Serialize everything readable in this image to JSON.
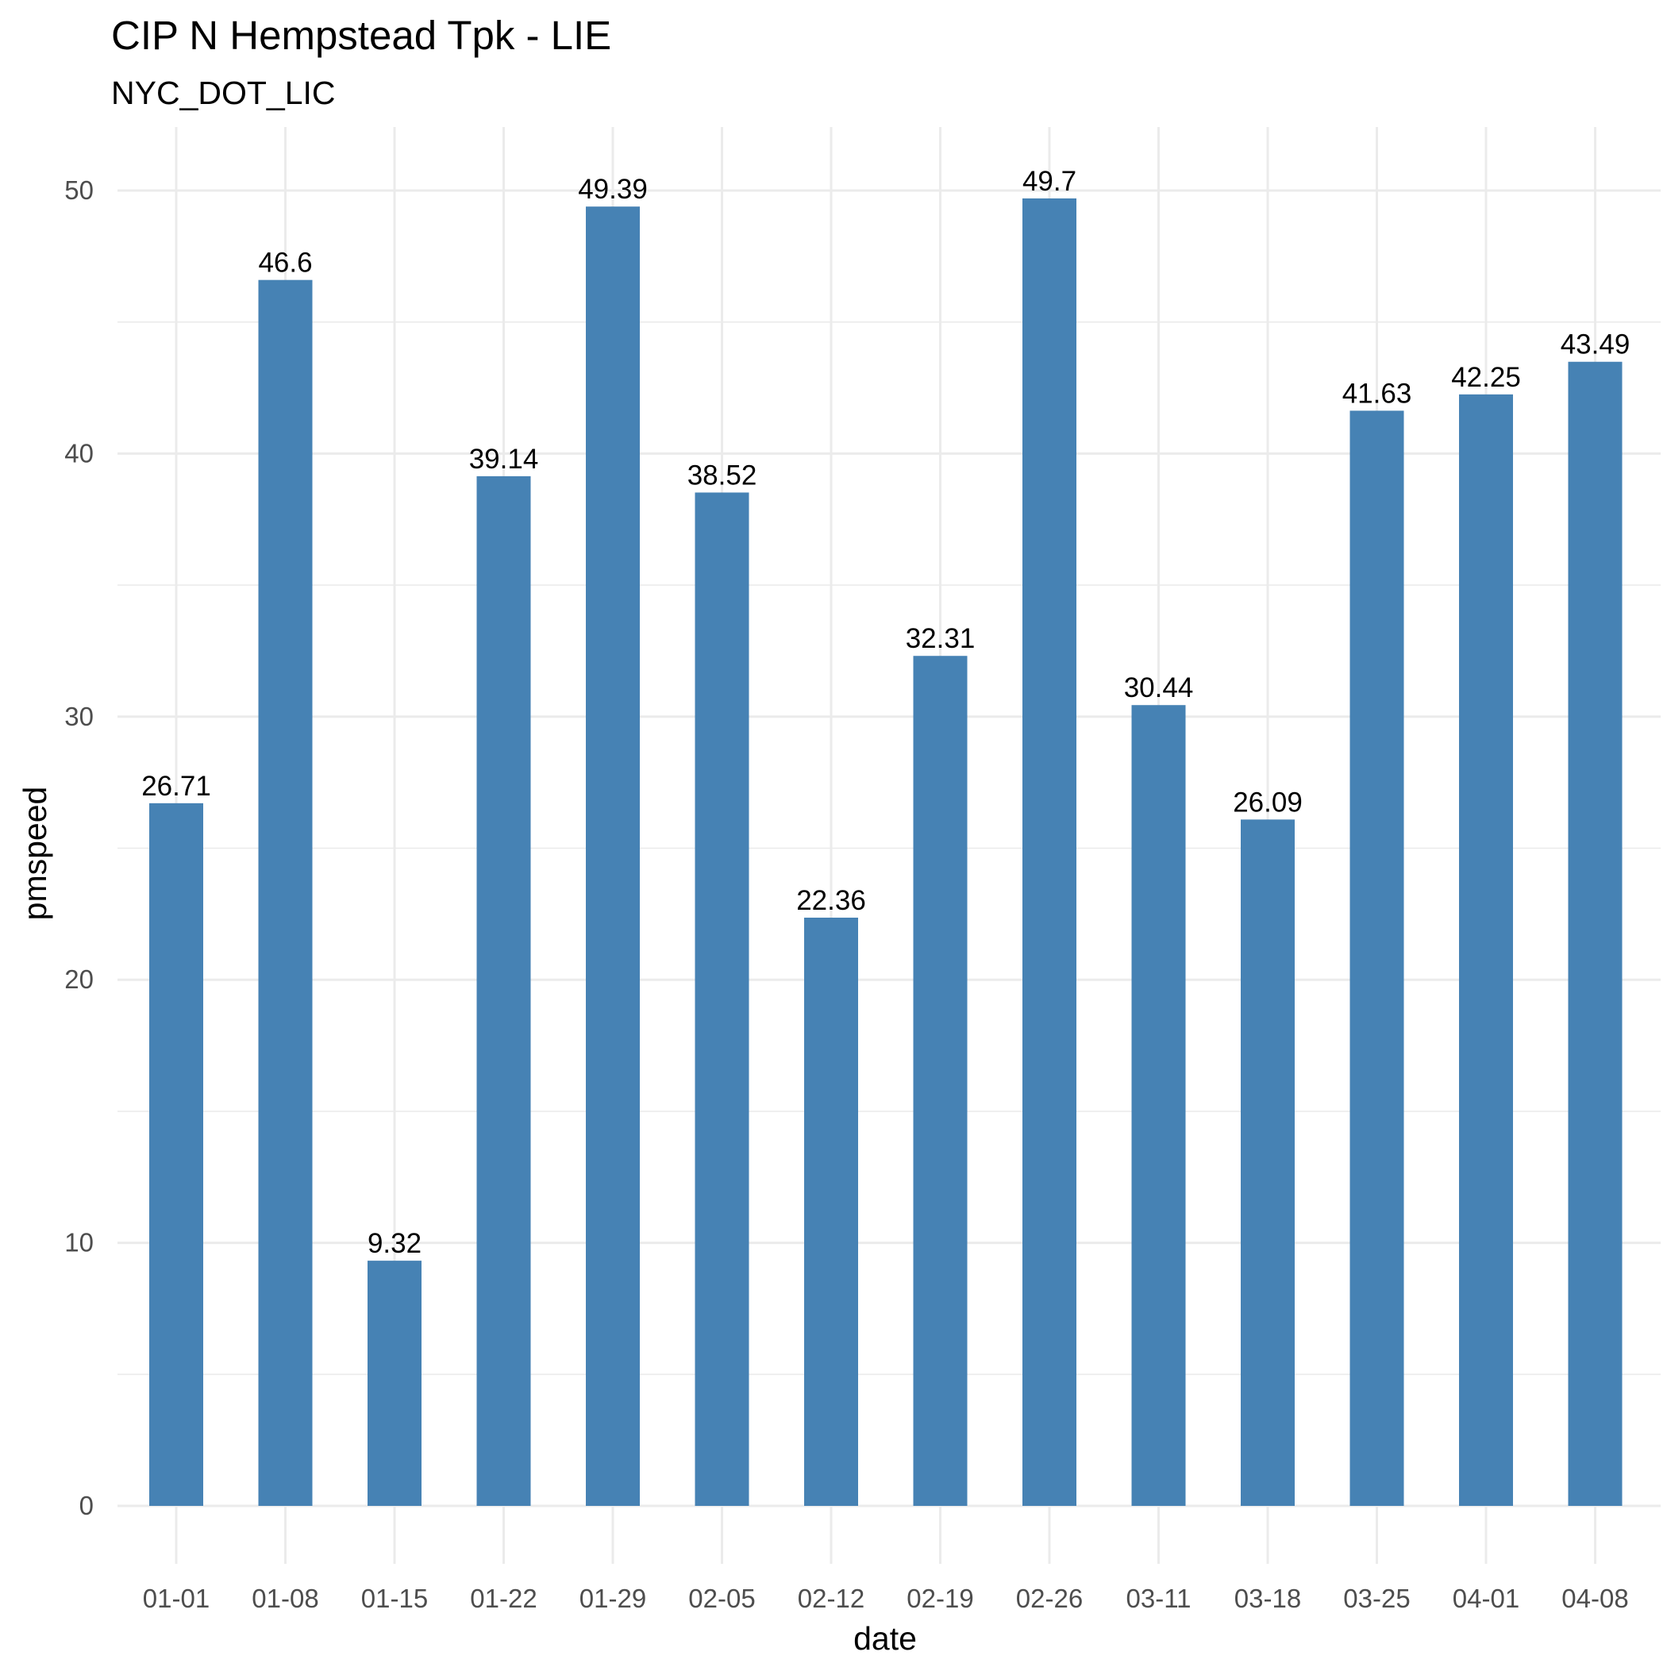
{
  "chart_data": {
    "type": "bar",
    "title": "CIP N Hempstead Tpk - LIE",
    "subtitle": "NYC_DOT_LIC",
    "xlabel": "date",
    "ylabel": "pmspeed",
    "categories": [
      "01-01",
      "01-08",
      "01-15",
      "01-22",
      "01-29",
      "02-05",
      "02-12",
      "02-19",
      "02-26",
      "03-11",
      "03-18",
      "03-25",
      "04-01",
      "04-08"
    ],
    "values": [
      26.71,
      46.6,
      9.32,
      39.14,
      49.39,
      38.52,
      22.36,
      32.31,
      49.7,
      30.44,
      26.09,
      41.63,
      42.25,
      43.49
    ],
    "value_labels": [
      "26.71",
      "46.6",
      "9.32",
      "39.14",
      "49.39",
      "38.52",
      "22.36",
      "32.31",
      "49.7",
      "30.44",
      "26.09",
      "41.63",
      "42.25",
      "43.49"
    ],
    "ylim": [
      0,
      52.2
    ],
    "yticks": [
      0,
      10,
      20,
      30,
      40,
      50
    ],
    "ytick_labels": [
      "0",
      "10",
      "20",
      "30",
      "40",
      "50"
    ],
    "grid": true,
    "legend": "none",
    "bar_color": "#4682B4"
  }
}
